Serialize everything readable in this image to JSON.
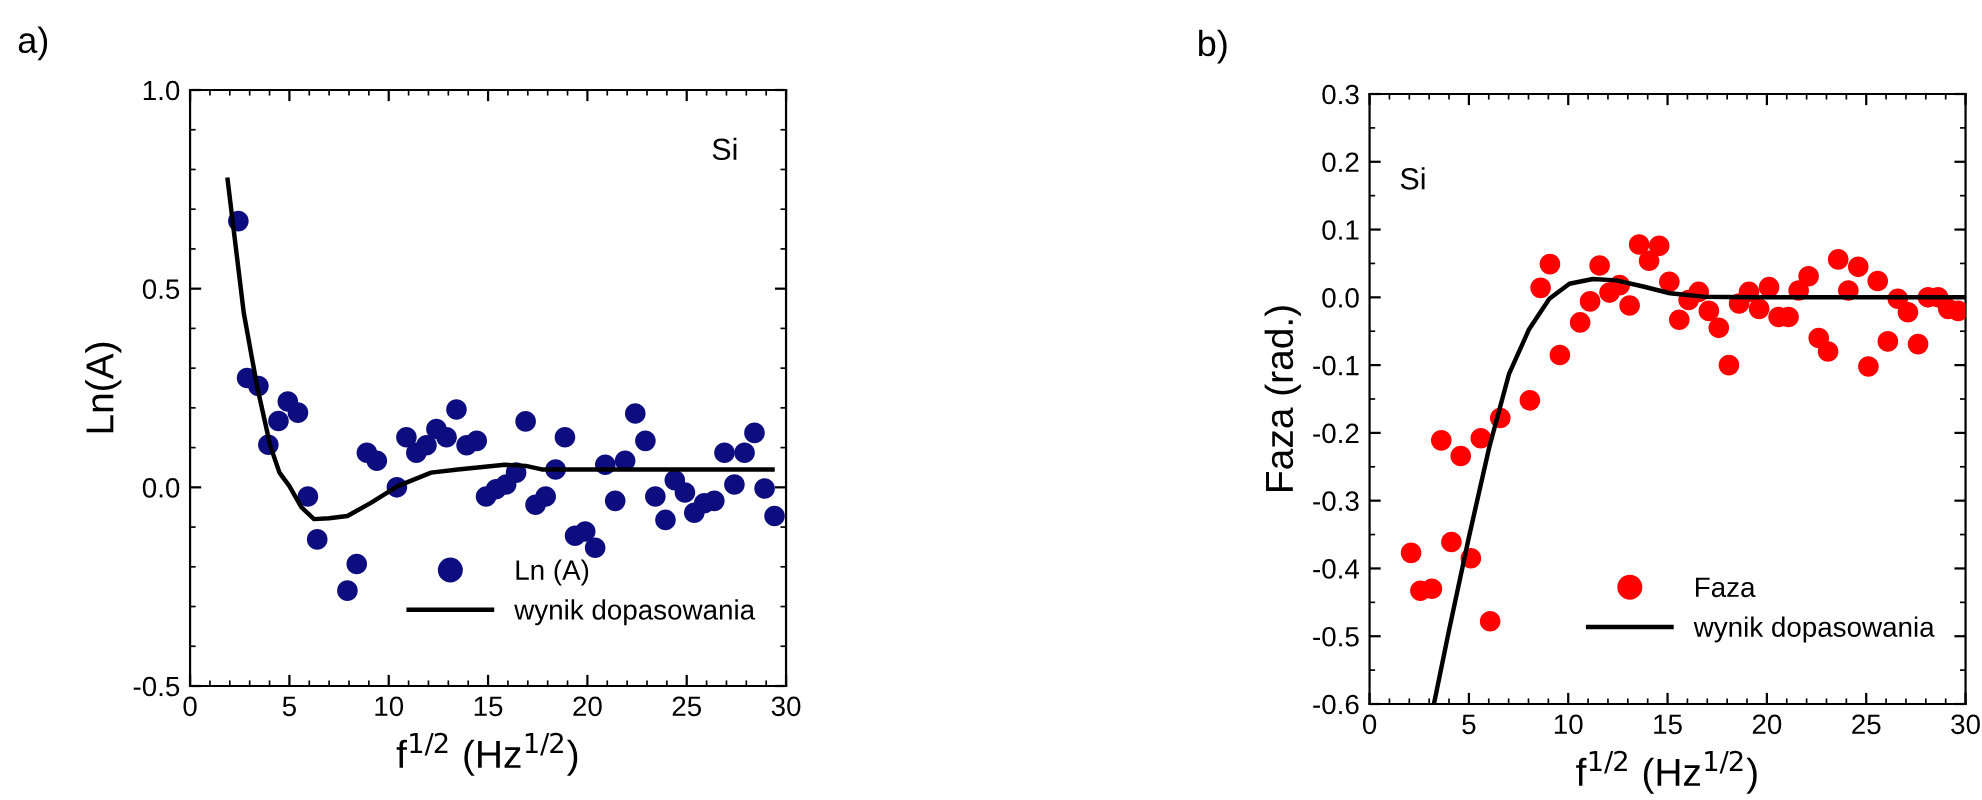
{
  "chart_data": [
    {
      "type": "scatter",
      "title": "a)",
      "xlabel": "f$^{1/2}$ (Hz$^{1/2}$)",
      "ylabel": "Ln(A)",
      "annotations": [
        "Si"
      ],
      "xlim": [
        0,
        30
      ],
      "xticks": [
        0,
        5,
        10,
        15,
        20,
        25,
        30
      ],
      "ylim": [
        -0.5,
        1.0
      ],
      "yticks": [
        {
          "value": -0.5,
          "label": "-0.5"
        },
        {
          "value": 0,
          "label": "0.0"
        },
        {
          "value": 0.5,
          "label": "0.5"
        },
        {
          "value": 1,
          "label": "1.0"
        }
      ],
      "legend": "bottom right",
      "grid": false,
      "series": [
        {
          "name": "Ln (A)",
          "color": "#0d0d80",
          "marker": "circle",
          "x": [
            2.43,
            2.87,
            3.44,
            3.94,
            4.45,
            4.92,
            5.43,
            5.93,
            6.4,
            7.92,
            8.39,
            8.9,
            9.4,
            10.41,
            10.89,
            11.39,
            11.9,
            12.4,
            12.91,
            13.41,
            13.92,
            14.43,
            14.9,
            15.4,
            15.91,
            16.41,
            16.89,
            17.39,
            17.9,
            18.4,
            18.87,
            19.38,
            19.89,
            20.39,
            20.9,
            21.4,
            21.9,
            22.41,
            22.92,
            23.42,
            23.93,
            24.4,
            24.91,
            25.38,
            25.88,
            26.39,
            26.9,
            27.4,
            27.91,
            28.41,
            28.92,
            29.42
          ],
          "values": [
            0.67,
            0.275,
            0.255,
            0.107,
            0.167,
            0.216,
            0.188,
            -0.023,
            -0.131,
            -0.26,
            -0.193,
            0.087,
            0.067,
            0.0,
            0.126,
            0.087,
            0.106,
            0.147,
            0.126,
            0.196,
            0.106,
            0.117,
            -0.023,
            -0.005,
            0.007,
            0.037,
            0.166,
            -0.044,
            -0.023,
            0.045,
            0.126,
            -0.122,
            -0.111,
            -0.152,
            0.057,
            -0.034,
            0.067,
            0.186,
            0.117,
            -0.023,
            -0.082,
            0.018,
            -0.013,
            -0.064,
            -0.04,
            -0.034,
            0.087,
            0.007,
            0.087,
            0.137,
            -0.003,
            -0.072
          ]
        },
        {
          "name": "wynik dopasowania",
          "type": "line",
          "color": "#000000",
          "marker": "none",
          "line_style": "solid",
          "x": [
            1.89,
            2.7,
            3.37,
            4.04,
            4.5,
            5.0,
            5.6,
            6.24,
            7.0,
            7.92,
            9.1,
            10.45,
            12.13,
            13.48,
            15.84,
            16.9,
            17.7,
            29.32
          ],
          "values": [
            0.774,
            0.44,
            0.255,
            0.104,
            0.037,
            0.003,
            -0.05,
            -0.08,
            -0.078,
            -0.072,
            -0.039,
            0.003,
            0.037,
            0.045,
            0.057,
            0.054,
            0.045,
            0.045
          ]
        }
      ]
    },
    {
      "type": "scatter",
      "title": "b)",
      "xlabel": "f$^{1/2}$ (Hz$^{1/2}$)",
      "ylabel": "Faza (rad.)",
      "annotations": [
        "Si"
      ],
      "xlim": [
        0,
        30
      ],
      "xticks": [
        0,
        5,
        10,
        15,
        20,
        25,
        30
      ],
      "ylim": [
        -0.6,
        0.3
      ],
      "yticks": [
        -0.6,
        -0.5,
        -0.4,
        -0.3,
        -0.2,
        -0.1,
        {
          "value": 0,
          "label": "0.0"
        },
        0.1,
        0.2,
        0.3
      ],
      "legend": "bottom right",
      "grid": false,
      "series": [
        {
          "name": "Faza",
          "color": "#ff0000",
          "marker": "circle",
          "x": [
            2.09,
            2.56,
            3.14,
            3.61,
            4.12,
            4.59,
            5.1,
            5.6,
            6.07,
            6.58,
            8.07,
            8.61,
            9.08,
            9.58,
            10.6,
            11.1,
            11.58,
            12.08,
            12.59,
            13.09,
            13.57,
            14.07,
            14.58,
            15.09,
            15.59,
            16.06,
            16.57,
            17.08,
            17.58,
            18.09,
            18.6,
            19.1,
            19.61,
            20.11,
            20.59,
            21.09,
            21.6,
            22.1,
            22.61,
            23.08,
            23.59,
            24.1,
            24.6,
            25.11,
            25.58,
            26.09,
            26.59,
            27.1,
            27.61,
            28.11,
            28.62,
            29.13,
            29.63
          ],
          "values": [
            -0.377,
            -0.433,
            -0.43,
            -0.211,
            -0.361,
            -0.234,
            -0.385,
            -0.208,
            -0.478,
            -0.178,
            -0.152,
            0.014,
            0.049,
            -0.085,
            -0.037,
            -0.006,
            0.047,
            0.007,
            0.018,
            -0.012,
            0.078,
            0.054,
            0.076,
            0.023,
            -0.033,
            -0.004,
            0.008,
            -0.02,
            -0.045,
            -0.1,
            -0.009,
            0.008,
            -0.017,
            0.015,
            -0.029,
            -0.029,
            0.01,
            0.031,
            -0.06,
            -0.08,
            0.056,
            0.01,
            0.045,
            -0.102,
            0.024,
            -0.065,
            -0.002,
            -0.022,
            -0.069,
            0.0,
            0.0,
            -0.017,
            -0.02
          ]
        },
        {
          "name": "wynik dopasowania",
          "type": "line",
          "color": "#000000",
          "marker": "none",
          "line_style": "solid",
          "x": [
            3.24,
            3.98,
            5.0,
            6.01,
            7.02,
            8.03,
            9.05,
            10.06,
            11.24,
            12.42,
            13.77,
            15.12,
            16.8,
            19.17,
            29.97
          ],
          "values": [
            -0.6,
            -0.494,
            -0.354,
            -0.223,
            -0.113,
            -0.047,
            -0.002,
            0.02,
            0.027,
            0.025,
            0.016,
            0.006,
            0.001,
            0.0,
            0.0
          ]
        }
      ]
    }
  ]
}
